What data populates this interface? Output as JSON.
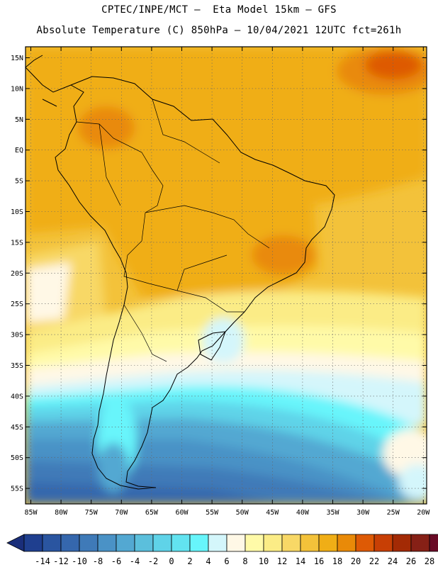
{
  "header": {
    "line1": "CPTEC/INPE/MCT –  Eta Model 15km – GFS",
    "line2": "Absolute Temperature (C) 850hPa – 10/04/2021 12UTC fct=261h"
  },
  "axes": {
    "lat_labels": [
      "15N",
      "10N",
      "5N",
      "EQ",
      "5S",
      "10S",
      "15S",
      "20S",
      "25S",
      "30S",
      "35S",
      "40S",
      "45S",
      "50S",
      "55S"
    ],
    "lon_labels": [
      "85W",
      "80W",
      "75W",
      "70W",
      "65W",
      "60W",
      "55W",
      "50W",
      "45W",
      "40W",
      "35W",
      "30W",
      "25W",
      "20W"
    ]
  },
  "colorbar": {
    "labels": [
      "-14",
      "-12",
      "-10",
      "-8",
      "-6",
      "-4",
      "-2",
      "0",
      "2",
      "4",
      "6",
      "8",
      "10",
      "12",
      "14",
      "16",
      "18",
      "20",
      "22",
      "24",
      "26",
      "28"
    ],
    "colors": [
      "#1f3f8f",
      "#2a55a0",
      "#3567ad",
      "#3f7ab8",
      "#4a92c6",
      "#53a8d2",
      "#5bbfdc",
      "#5fd3e8",
      "#62e3f0",
      "#67f5fb",
      "#d4f6fb",
      "#fff8e6",
      "#fffaa8",
      "#fbec86",
      "#f8d866",
      "#f3c23a",
      "#f0ae16",
      "#e98a08",
      "#de5a05",
      "#c83f05",
      "#a32a05",
      "#862016",
      "#6a0a26"
    ],
    "left_end_color": "#1a2e7a",
    "right_end_color": "#6a0a26"
  },
  "colors": {
    "ocean_tropical": "#f3c23a",
    "land_warm": "#f0ae16",
    "hot": "#de5a05",
    "cold_south": "#2a55a0"
  }
}
